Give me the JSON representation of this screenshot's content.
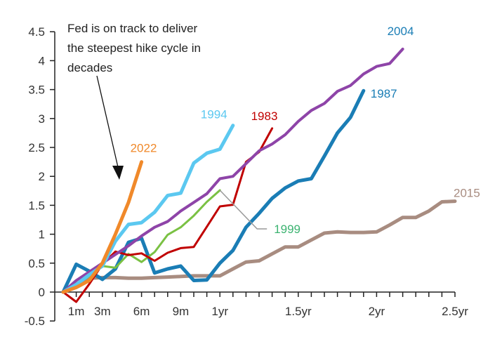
{
  "chart_data": {
    "type": "line",
    "title": "",
    "xlabel": "",
    "ylabel": "",
    "ylim": [
      -0.5,
      4.5
    ],
    "xlim_months": [
      0,
      30
    ],
    "grid": false,
    "legend": "inline labels",
    "y_ticks": [
      {
        "value": 4.5,
        "label": "4.5"
      },
      {
        "value": 4,
        "label": "4"
      },
      {
        "value": 3.5,
        "label": "3.5"
      },
      {
        "value": 3,
        "label": "3"
      },
      {
        "value": 2.5,
        "label": "2.5"
      },
      {
        "value": 2,
        "label": "2"
      },
      {
        "value": 1.5,
        "label": "1.5"
      },
      {
        "value": 1,
        "label": "1"
      },
      {
        "value": 0.5,
        "label": "0.5"
      },
      {
        "value": 0,
        "label": "0"
      },
      {
        "value": -0.5,
        "label": "-0.5"
      }
    ],
    "x_ticks": [
      {
        "month": 1,
        "label": "1m"
      },
      {
        "month": 3,
        "label": "3m"
      },
      {
        "month": 6,
        "label": "6m"
      },
      {
        "month": 9,
        "label": "9m"
      },
      {
        "month": 12,
        "label": "1yr"
      },
      {
        "month": 18,
        "label": "1.5yr"
      },
      {
        "month": 24,
        "label": "2yr"
      },
      {
        "month": 30,
        "label": "2.5yr"
      }
    ],
    "annotation": {
      "lines": [
        "Fed is on track to deliver",
        "the steepest hike cycle in",
        "decades"
      ]
    },
    "series": [
      {
        "name": "2015",
        "color": "#a88c80",
        "width": 5,
        "values": [
          0,
          0.12,
          0.24,
          0.25,
          0.25,
          0.24,
          0.24,
          0.25,
          0.26,
          0.27,
          0.28,
          0.28,
          0.28,
          0.4,
          0.52,
          0.54,
          0.66,
          0.78,
          0.78,
          0.9,
          1.02,
          1.04,
          1.03,
          1.03,
          1.04,
          1.16,
          1.29,
          1.29,
          1.4,
          1.56,
          1.57
        ]
      },
      {
        "name": "1987",
        "color": "#1a7db5",
        "width": 5,
        "values": [
          0,
          0.48,
          0.36,
          0.22,
          0.4,
          0.86,
          0.93,
          0.33,
          0.4,
          0.45,
          0.2,
          0.21,
          0.5,
          0.72,
          1.12,
          1.36,
          1.62,
          1.8,
          1.92,
          1.96,
          2.35,
          2.75,
          3.02,
          3.48
        ]
      },
      {
        "name": "1999",
        "color": "#7ac143",
        "width": 3,
        "values": [
          0,
          0.15,
          0.27,
          0.45,
          0.42,
          0.66,
          0.52,
          0.69,
          0.99,
          1.12,
          1.32,
          1.56,
          1.76
        ]
      },
      {
        "name": "1983",
        "color": "#c00000",
        "width": 3,
        "values": [
          0,
          -0.17,
          0.14,
          0.48,
          0.7,
          0.64,
          0.67,
          0.54,
          0.68,
          0.76,
          0.78,
          1.13,
          1.48,
          1.51,
          2.25,
          2.42,
          2.83
        ]
      },
      {
        "name": "2004",
        "color": "#8e44a8",
        "width": 4,
        "values": [
          0,
          0.2,
          0.35,
          0.5,
          0.65,
          0.8,
          0.97,
          1.12,
          1.22,
          1.4,
          1.55,
          1.7,
          1.96,
          2.0,
          2.22,
          2.44,
          2.56,
          2.72,
          2.95,
          3.14,
          3.26,
          3.47,
          3.57,
          3.77,
          3.9,
          3.95,
          4.2
        ]
      },
      {
        "name": "1994",
        "color": "#5bc8f0",
        "width": 5,
        "values": [
          0,
          0.13,
          0.3,
          0.45,
          0.88,
          1.17,
          1.2,
          1.38,
          1.67,
          1.71,
          2.23,
          2.4,
          2.47,
          2.88
        ]
      },
      {
        "name": "2022",
        "color": "#f0892a",
        "width": 5,
        "values": [
          0,
          0.08,
          0.2,
          0.5,
          1.0,
          1.55,
          2.25
        ]
      }
    ],
    "callout_1999": {
      "label": "1999",
      "leader_color": "#999999"
    }
  }
}
